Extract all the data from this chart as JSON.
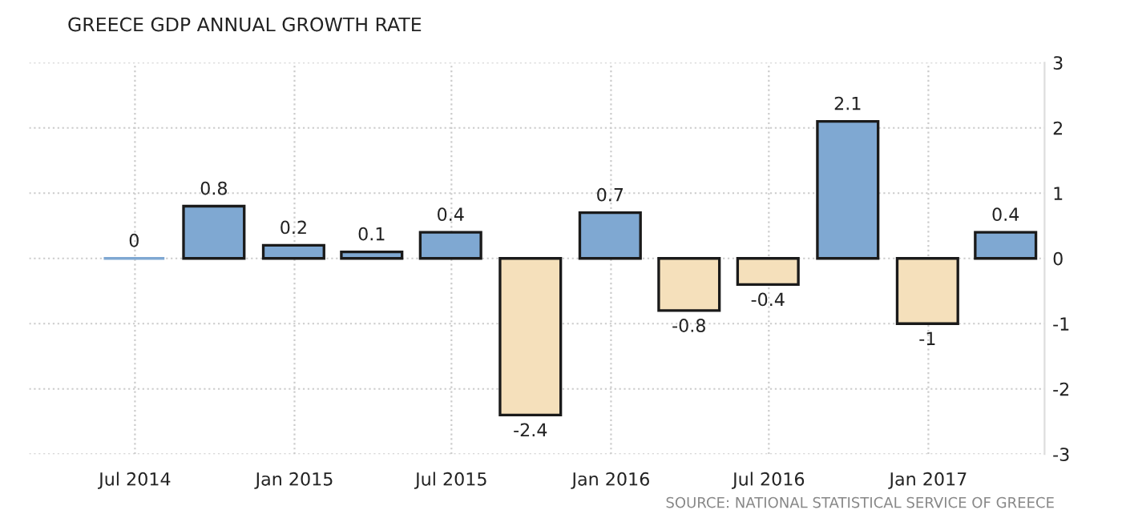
{
  "chart_data": {
    "type": "bar",
    "title": "GREECE GDP ANNUAL GROWTH RATE",
    "x": [
      "2014-06-30",
      "2014-09-30",
      "2014-12-31",
      "2015-03-31",
      "2015-06-30",
      "2015-09-30",
      "2015-12-31",
      "2016-03-31",
      "2016-06-30",
      "2016-09-30",
      "2016-12-31",
      "2017-03-31"
    ],
    "values": [
      0,
      0.8,
      0.2,
      0.1,
      0.4,
      -2.4,
      0.7,
      -0.8,
      -0.4,
      2.1,
      -1,
      0.4
    ],
    "colors": [
      "#7fa8d2",
      "#7fa8d2",
      "#7fa8d2",
      "#7fa8d2",
      "#7fa8d2",
      "#f5e0bb",
      "#7fa8d2",
      "#f5e0bb",
      "#f5e0bb",
      "#7fa8d2",
      "#f5e0bb",
      "#7fa8d2"
    ],
    "data_labels": true,
    "xlim": [
      "2014-03-01",
      "2017-05-15"
    ],
    "xticks": [
      {
        "value": "2014-07-01",
        "label": "Jul 2014"
      },
      {
        "value": "2015-01-01",
        "label": "Jan 2015"
      },
      {
        "value": "2015-07-01",
        "label": "Jul 2015"
      },
      {
        "value": "2016-01-01",
        "label": "Jan 2016"
      },
      {
        "value": "2016-07-01",
        "label": "Jul 2016"
      },
      {
        "value": "2017-01-01",
        "label": "Jan 2017"
      }
    ],
    "ylim": [
      -3,
      3
    ],
    "yticks": [
      -3,
      -2,
      -1,
      0,
      1,
      2,
      3
    ],
    "grid": true,
    "annotations": [
      "SOURCE: NATIONAL STATISTICAL SERVICE OF GREECE"
    ]
  }
}
